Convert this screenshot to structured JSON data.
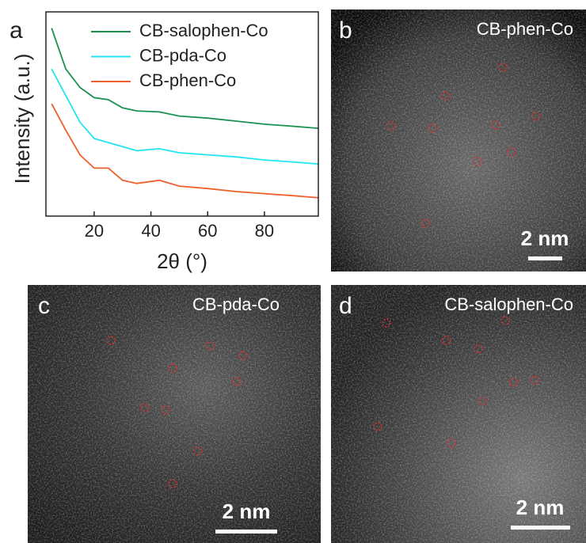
{
  "chart_data": {
    "type": "line",
    "label": "a",
    "xlabel": "2θ (°)",
    "ylabel": "Intensity (a.u.)",
    "x": [
      5,
      10,
      15,
      20,
      25,
      30,
      35,
      43,
      50,
      60,
      70,
      80,
      90,
      99
    ],
    "xlim": [
      3,
      99
    ],
    "xticks": [
      20,
      40,
      60,
      80
    ],
    "ylim": [
      0,
      100
    ],
    "series": [
      {
        "name": "CB-salophen-Co",
        "color": "#1a9150",
        "values": [
          92,
          72,
          63,
          58,
          57,
          53,
          51.5,
          51,
          49,
          48,
          46.5,
          45,
          44,
          43
        ]
      },
      {
        "name": "CB-pda-Co",
        "color": "#22e5f0",
        "values": [
          72,
          59,
          46,
          38,
          36,
          34,
          32,
          33,
          31,
          30,
          29,
          27.5,
          26.5,
          25.5
        ]
      },
      {
        "name": "CB-phen-Co",
        "color": "#f0602a",
        "values": [
          55,
          42,
          30,
          23.5,
          23.5,
          17.5,
          16,
          17.5,
          14.7,
          13.5,
          12,
          11,
          10,
          9
        ]
      }
    ]
  },
  "images": [
    {
      "label": "b",
      "title": "CB-phen-Co",
      "scale": "2 nm"
    },
    {
      "label": "c",
      "title": "CB-pda-Co",
      "scale": "2 nm"
    },
    {
      "label": "d",
      "title": "CB-salophen-Co",
      "scale": "2 nm"
    }
  ]
}
